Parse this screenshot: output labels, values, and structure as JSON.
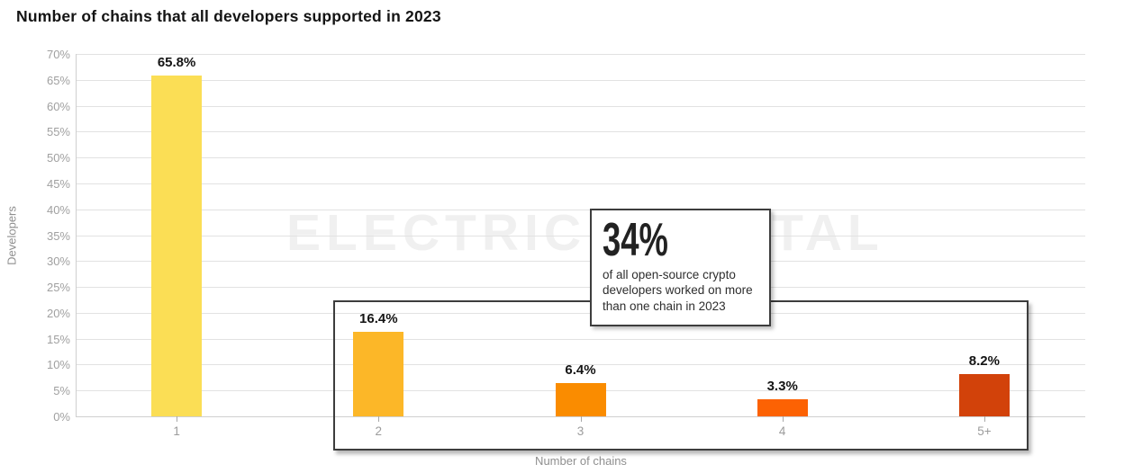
{
  "title": "Number of chains that all developers supported in 2023",
  "watermark": {
    "left": "ELECTRIC",
    "right": "CAPITAL",
    "icon": "lightning-bolt-icon"
  },
  "callout": {
    "value": "34%",
    "text": "of all open-source crypto developers worked on more than one chain in 2023"
  },
  "chart_data": {
    "type": "bar",
    "title": "Number of chains that all developers supported in 2023",
    "categories": [
      "1",
      "2",
      "3",
      "4",
      "5+"
    ],
    "values": [
      65.8,
      16.4,
      6.4,
      3.3,
      8.2
    ],
    "value_labels": [
      "65.8%",
      "16.4%",
      "6.4%",
      "3.3%",
      "8.2%"
    ],
    "bar_colors": [
      "#FBDE55",
      "#FCB728",
      "#FA8C00",
      "#FC6203",
      "#D2420A"
    ],
    "xlabel": "Number of chains",
    "ylabel": "Developers",
    "ylim": [
      0,
      70
    ],
    "yticks": [
      "0%",
      "5%",
      "10%",
      "15%",
      "20%",
      "25%",
      "30%",
      "35%",
      "40%",
      "45%",
      "50%",
      "55%",
      "60%",
      "65%",
      "70%"
    ],
    "grid": true,
    "legend": "none",
    "annotation": "box around categories 2 through 5+ linked to 34% callout"
  }
}
